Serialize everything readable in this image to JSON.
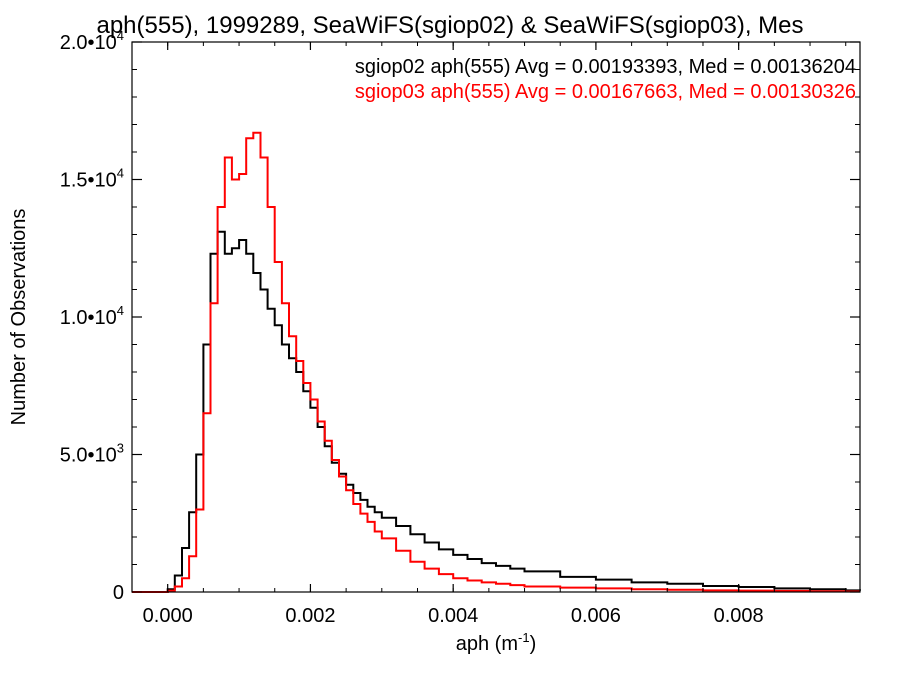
{
  "chart_data": {
    "type": "line",
    "title": "aph(555), 1999289, SeaWiFS(sgiop02) & SeaWiFS(sgiop03), Mes",
    "xlabel_base": "aph (m",
    "xlabel_exp": "-1",
    "xlabel_close": ")",
    "ylabel": "Number of Observations",
    "xlim": [
      -0.0005,
      0.0097
    ],
    "ylim": [
      0,
      20000
    ],
    "grid": false,
    "legend_position": "top-right",
    "x_ticks": [
      {
        "value": 0.0,
        "label": "0.000"
      },
      {
        "value": 0.002,
        "label": "0.002"
      },
      {
        "value": 0.004,
        "label": "0.004"
      },
      {
        "value": 0.006,
        "label": "0.006"
      },
      {
        "value": 0.008,
        "label": "0.008"
      }
    ],
    "y_ticks": [
      {
        "value": 0,
        "label": "0"
      },
      {
        "value": 5000,
        "mantissa": "5.0",
        "exp": "3"
      },
      {
        "value": 10000,
        "mantissa": "1.0",
        "exp": "4"
      },
      {
        "value": 15000,
        "mantissa": "1.5",
        "exp": "4"
      },
      {
        "value": 20000,
        "mantissa": "2.0",
        "exp": "4"
      }
    ],
    "series": [
      {
        "name": "sgiop02",
        "legend": "sgiop02 aph(555) Avg = 0.00193393, Med = 0.00136204",
        "color": "#000000",
        "x": [
          -0.0005,
          -0.0001,
          0.0,
          0.0001,
          0.0002,
          0.0003,
          0.0004,
          0.0005,
          0.0006,
          0.0007,
          0.0008,
          0.0009,
          0.001,
          0.0011,
          0.0012,
          0.0013,
          0.0014,
          0.0015,
          0.0016,
          0.0017,
          0.0018,
          0.0019,
          0.002,
          0.0021,
          0.0022,
          0.0023,
          0.0024,
          0.0025,
          0.0026,
          0.0027,
          0.0028,
          0.0029,
          0.003,
          0.0032,
          0.0034,
          0.0036,
          0.0038,
          0.004,
          0.0042,
          0.0044,
          0.0046,
          0.0048,
          0.005,
          0.0055,
          0.006,
          0.0065,
          0.007,
          0.0075,
          0.008,
          0.0085,
          0.009,
          0.0095,
          0.0097
        ],
        "y": [
          0,
          0,
          100,
          600,
          1600,
          2900,
          5000,
          9000,
          12300,
          13100,
          12300,
          12500,
          12800,
          12300,
          11600,
          11000,
          10300,
          9700,
          9000,
          8500,
          8000,
          7300,
          6700,
          6000,
          5300,
          4700,
          4300,
          3900,
          3600,
          3350,
          3100,
          2900,
          2700,
          2400,
          2100,
          1800,
          1550,
          1350,
          1200,
          1050,
          950,
          850,
          750,
          550,
          450,
          350,
          300,
          220,
          180,
          130,
          100,
          60,
          50
        ]
      },
      {
        "name": "sgiop03",
        "legend": "sgiop03 aph(555) Avg = 0.00167663, Med = 0.00130326",
        "color": "#ff0000",
        "x": [
          -0.0005,
          -0.0001,
          0.0,
          0.0001,
          0.0002,
          0.0003,
          0.0004,
          0.0005,
          0.0006,
          0.0007,
          0.0008,
          0.0009,
          0.001,
          0.0011,
          0.0012,
          0.0013,
          0.0014,
          0.0015,
          0.0016,
          0.0017,
          0.0018,
          0.0019,
          0.002,
          0.0021,
          0.0022,
          0.0023,
          0.0024,
          0.0025,
          0.0026,
          0.0027,
          0.0028,
          0.0029,
          0.003,
          0.0032,
          0.0034,
          0.0036,
          0.0038,
          0.004,
          0.0042,
          0.0044,
          0.0046,
          0.0048,
          0.005,
          0.0055,
          0.006,
          0.0065,
          0.007,
          0.0075,
          0.008,
          0.0085,
          0.009,
          0.0095,
          0.0097
        ],
        "y": [
          0,
          0,
          50,
          200,
          500,
          1300,
          3000,
          6500,
          10500,
          14000,
          15800,
          15000,
          15200,
          16500,
          16700,
          15800,
          14000,
          12000,
          10500,
          9300,
          8400,
          7600,
          7000,
          6200,
          5500,
          4800,
          4200,
          3700,
          3200,
          2850,
          2550,
          2200,
          1950,
          1500,
          1100,
          850,
          650,
          500,
          420,
          350,
          300,
          250,
          200,
          160,
          130,
          100,
          80,
          60,
          50,
          40,
          30,
          20,
          20
        ]
      }
    ]
  }
}
